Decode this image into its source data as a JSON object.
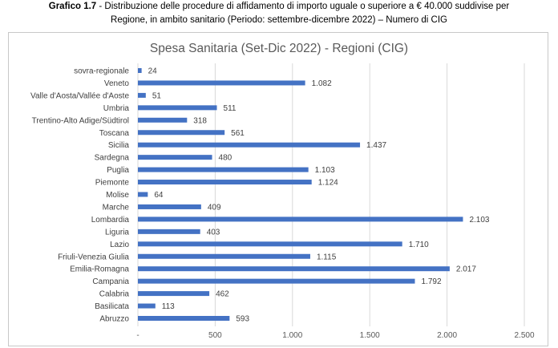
{
  "caption": {
    "label": "Grafico 1.7",
    "line1": " - Distribuzione delle procedure di affidamento di importo uguale o superiore a € 40.000 suddivise per",
    "line2": "Regione, in ambito sanitario (Periodo: settembre-dicembre 2022) – Numero di CIG"
  },
  "chart_data": {
    "type": "bar",
    "orientation": "horizontal",
    "title": "Spesa Sanitaria (Set-Dic 2022) - Regioni (CIG)",
    "categories": [
      "sovra-regionale",
      "Veneto",
      "Valle d'Aosta/Vallée d'Aoste",
      "Umbria",
      "Trentino-Alto Adige/Südtirol",
      "Toscana",
      "Sicilia",
      "Sardegna",
      "Puglia",
      "Piemonte",
      "Molise",
      "Marche",
      "Lombardia",
      "Liguria",
      "Lazio",
      "Friuli-Venezia Giulia",
      "Emilia-Romagna",
      "Campania",
      "Calabria",
      "Basilicata",
      "Abruzzo"
    ],
    "values": [
      24,
      1082,
      51,
      511,
      318,
      561,
      1437,
      480,
      1103,
      1124,
      64,
      409,
      2103,
      403,
      1710,
      1115,
      2017,
      1792,
      462,
      113,
      593
    ],
    "value_labels": [
      "24",
      "1.082",
      "51",
      "511",
      "318",
      "561",
      "1.437",
      "480",
      "1.103",
      "1.124",
      "64",
      "409",
      "2.103",
      "403",
      "1.710",
      "1.115",
      "2.017",
      "1.792",
      "462",
      "113",
      "593"
    ],
    "xlim": [
      0,
      2500
    ],
    "xticks": [
      0,
      500,
      1000,
      1500,
      2000,
      2500
    ],
    "xtick_labels": [
      "-",
      "500",
      "1.000",
      "1.500",
      "2.000",
      "2.500"
    ],
    "grid": "vertical",
    "bar_color": "#4472c4"
  }
}
